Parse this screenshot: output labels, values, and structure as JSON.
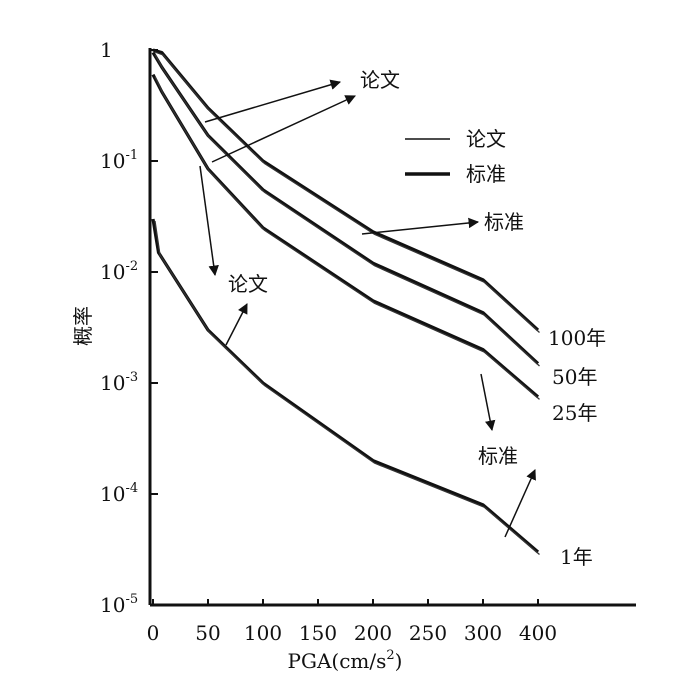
{
  "chart_data": {
    "type": "line",
    "xlabel": "PGA(cm/s²)",
    "ylabel": "概率",
    "y_scale": "log",
    "ylim": [
      1e-05,
      1
    ],
    "x_tick_labels": [
      "0",
      "50",
      "100",
      "150",
      "200",
      "250",
      "300",
      "400"
    ],
    "y_tick_labels": [
      {
        "base": "1",
        "exp": ""
      },
      {
        "base": "10",
        "exp": "-1"
      },
      {
        "base": "10",
        "exp": "-2"
      },
      {
        "base": "10",
        "exp": "-3"
      },
      {
        "base": "10",
        "exp": "-4"
      },
      {
        "base": "10",
        "exp": "-5"
      }
    ],
    "legend": {
      "position": "top-right",
      "items": [
        {
          "label": "论文",
          "style": "thin"
        },
        {
          "label": "标准",
          "style": "thick"
        }
      ]
    },
    "series": [
      {
        "curve_label": "100年",
        "x": [
          0,
          8,
          50,
          100,
          200,
          300,
          400
        ],
        "y": [
          1.0,
          0.95,
          0.3,
          0.1,
          0.023,
          0.0085,
          0.003
        ]
      },
      {
        "curve_label": "50年",
        "x": [
          0,
          8,
          50,
          100,
          200,
          300,
          400
        ],
        "y": [
          0.95,
          0.7,
          0.17,
          0.055,
          0.012,
          0.0043,
          0.0015
        ]
      },
      {
        "curve_label": "25年",
        "x": [
          0,
          8,
          50,
          100,
          200,
          300,
          400
        ],
        "y": [
          0.6,
          0.42,
          0.085,
          0.025,
          0.0055,
          0.002,
          0.00075
        ]
      },
      {
        "curve_label": "1年",
        "x": [
          0,
          5,
          50,
          100,
          200,
          300,
          400
        ],
        "y": [
          0.03,
          0.015,
          0.003,
          0.001,
          0.0002,
          8e-05,
          3e-05
        ]
      }
    ],
    "annotations": [
      "论文",
      "标准",
      "论文",
      "标准"
    ]
  }
}
